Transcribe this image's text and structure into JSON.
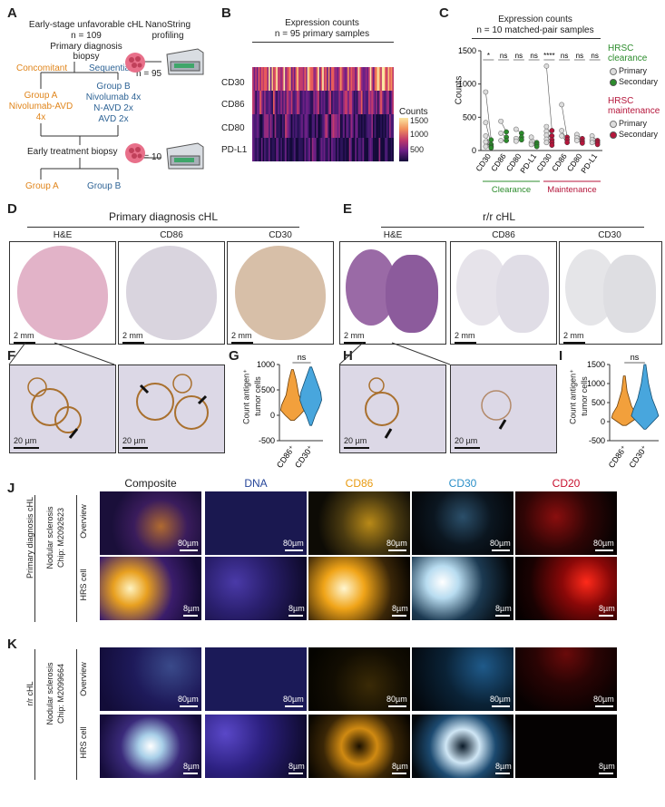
{
  "panels": {
    "A": {
      "label": "A",
      "cohort": "Early-stage unfavorable cHL",
      "n_total": "n = 109",
      "biopsy1": "Primary diagnosis",
      "biopsy1b": "biopsy",
      "nanostring": "NanoString",
      "profiling": "profiling",
      "n95": "n = 95",
      "concomitant": "Concomitant",
      "sequential": "Sequential",
      "groupA_title": "Group A",
      "groupA_l1": "Nivolumab-AVD",
      "groupA_l2": "4x",
      "groupB_title": "Group B",
      "groupB_l1": "Nivolumab 4x",
      "groupB_l2": "N-AVD 2x",
      "groupB_l3": "AVD 2x",
      "early": "Early treatment biopsy",
      "n10": "n = 10",
      "groupA": "Group A",
      "groupB": "Group B"
    },
    "B": {
      "label": "B",
      "title": "Expression counts",
      "subtitle": "n = 95 primary samples",
      "rows": [
        "CD30",
        "CD86",
        "CD80",
        "PD-L1"
      ],
      "legend_title": "Counts",
      "legend_ticks": [
        "1500",
        "1000",
        "500"
      ]
    },
    "C": {
      "label": "C",
      "title": "Expression counts",
      "subtitle": "n = 10 matched-pair samples",
      "ylabel": "Counts",
      "yticks": [
        "1500",
        "1000",
        "500",
        "0"
      ],
      "xticks": [
        "CD30",
        "CD86",
        "CD80",
        "PD-L1",
        "CD30",
        "CD86",
        "CD80",
        "PD-L1"
      ],
      "sig": [
        "*",
        "ns",
        "ns",
        "ns",
        "****",
        "ns",
        "ns",
        "ns"
      ],
      "group1": "Clearance",
      "group2": "Maintenance",
      "legend1_title1": "HRSC",
      "legend1_title2": "clearance",
      "legend2_title1": "HRSC",
      "legend2_title2": "maintenance",
      "primary": "Primary",
      "secondary": "Secondary"
    },
    "D": {
      "label": "D",
      "title": "Primary diagnosis cHL",
      "cols": [
        "H&E",
        "CD86",
        "CD30"
      ],
      "scale": "2 mm"
    },
    "E": {
      "label": "E",
      "title": "r/r cHL",
      "cols": [
        "H&E",
        "CD86",
        "CD30"
      ],
      "scale": "2 mm"
    },
    "F": {
      "label": "F",
      "scale": "20 µm"
    },
    "G": {
      "label": "G",
      "ylabel1": "Count antigen⁺",
      "ylabel2": "tumor cells",
      "yticks": [
        "1000",
        "500",
        "0",
        "-500"
      ],
      "xticks": [
        "CD86⁺",
        "CD30⁺"
      ],
      "sig": "ns"
    },
    "H": {
      "label": "H",
      "scale": "20 µm"
    },
    "I": {
      "label": "I",
      "ylabel1": "Count antigen⁺",
      "ylabel2": "tumor cells",
      "yticks": [
        "1500",
        "1000",
        "500",
        "0",
        "-500"
      ],
      "xticks": [
        "CD86⁺",
        "CD30⁺"
      ],
      "sig": "ns"
    },
    "J": {
      "label": "J",
      "channels": [
        "Composite",
        "DNA",
        "CD86",
        "CD30",
        "CD20"
      ],
      "side1": "Primary diagnosis cHL",
      "side2a": "Nodular sclerosis",
      "side2b": "Chip: M2092623",
      "row1": "Overview",
      "row2": "HRS cell",
      "scale_overview": "80µm",
      "scale_hrs": "8µm"
    },
    "K": {
      "label": "K",
      "side1": "r/r cHL",
      "side2a": "Nodular sclerosis",
      "side2b": "Chip: M2099664",
      "row1": "Overview",
      "row2": "HRS cell",
      "scale_overview": "80µm",
      "scale_hrs": "8µm"
    }
  },
  "colors": {
    "orange": "#e0851b",
    "blue": "#2f6496",
    "green": "#2c8c2c",
    "red": "#b5163b"
  }
}
